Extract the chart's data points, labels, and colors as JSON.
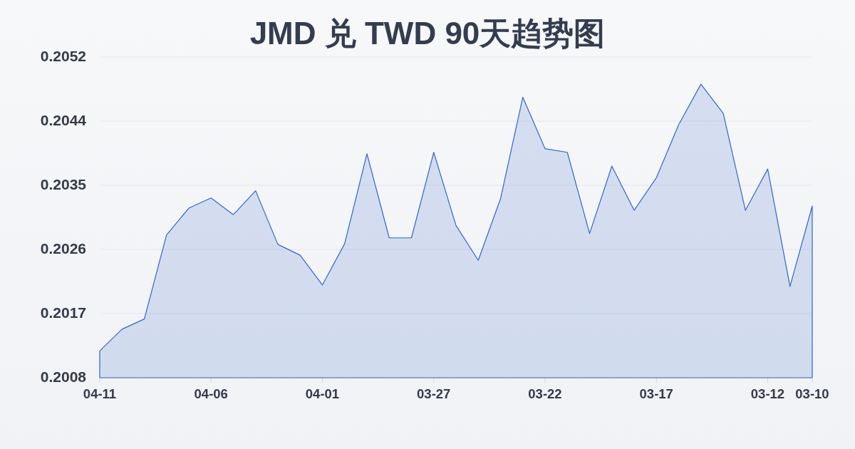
{
  "chart_data": {
    "type": "area",
    "title": "JMD 兑 TWD 90天趋势图",
    "categories": [
      "04-11",
      null,
      null,
      null,
      null,
      "04-06",
      null,
      null,
      null,
      null,
      "04-01",
      null,
      null,
      null,
      null,
      "03-27",
      null,
      null,
      null,
      null,
      "03-22",
      null,
      null,
      null,
      null,
      "03-17",
      null,
      null,
      null,
      null,
      "03-12",
      null,
      "03-10"
    ],
    "series": [
      {
        "color": "#3366cc",
        "values": [
          0.20119,
          0.20149,
          0.20163,
          0.20279,
          0.20316,
          0.2033,
          0.20307,
          0.2034,
          0.20266,
          0.20251,
          0.2021,
          0.20267,
          0.20391,
          0.20275,
          0.20275,
          0.20393,
          0.20292,
          0.20244,
          0.20329,
          0.20469,
          0.20398,
          0.20393,
          0.20281,
          0.20374,
          0.20313,
          0.20358,
          0.20431,
          0.20487,
          0.20447,
          0.20313,
          0.2037,
          0.20208,
          0.20319
        ]
      }
    ],
    "ylim": [
      0.20082,
      0.205245
    ],
    "yticks": [
      {
        "value": 0.20082,
        "label": "0.2008"
      },
      {
        "value": 0.201705,
        "label": "0.2017"
      },
      {
        "value": 0.20259,
        "label": "0.2026"
      },
      {
        "value": 0.203475,
        "label": "0.2035"
      },
      {
        "value": 0.20436,
        "label": "0.2044"
      },
      {
        "value": 0.205245,
        "label": "0.2052"
      }
    ],
    "grid": "y"
  }
}
